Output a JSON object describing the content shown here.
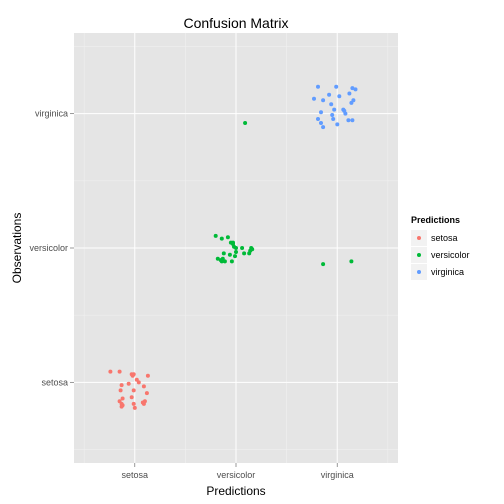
{
  "chart_data": {
    "type": "scatter",
    "title": "Confusion Matrix",
    "xlabel": "Predictions",
    "ylabel": "Observations",
    "categories": [
      "setosa",
      "versicolor",
      "virginica"
    ],
    "xlim": [
      0.4,
      3.6
    ],
    "ylim": [
      0.4,
      3.6
    ],
    "grid": true,
    "legend": {
      "title": "Predictions",
      "position": "right",
      "entries": [
        "setosa",
        "versicolor",
        "virginica"
      ]
    },
    "colors": {
      "setosa": "#F8766D",
      "versicolor": "#00BA38",
      "virginica": "#619CFF",
      "panel": "#E5E5E5",
      "grid": "#FFFFFF"
    },
    "series": [
      {
        "name": "setosa",
        "points": [
          [
            0.76,
            1.08
          ],
          [
            0.85,
            1.08
          ],
          [
            0.97,
            1.06
          ],
          [
            0.98,
            1.05
          ],
          [
            0.99,
            1.06
          ],
          [
            1.02,
            1.02
          ],
          [
            1.13,
            1.05
          ],
          [
            0.87,
            0.98
          ],
          [
            0.94,
            0.99
          ],
          [
            1.04,
            1.0
          ],
          [
            1.09,
            0.97
          ],
          [
            0.86,
            0.94
          ],
          [
            1.12,
            0.92
          ],
          [
            0.88,
            0.88
          ],
          [
            0.97,
            0.89
          ],
          [
            0.99,
            0.94
          ],
          [
            0.85,
            0.86
          ],
          [
            1.08,
            0.85
          ],
          [
            0.87,
            0.84
          ],
          [
            1.09,
            0.84
          ],
          [
            0.88,
            0.83
          ],
          [
            0.99,
            0.84
          ],
          [
            0.87,
            0.82
          ],
          [
            1.0,
            0.81
          ],
          [
            1.1,
            0.86
          ]
        ]
      },
      {
        "name": "versicolor",
        "points": [
          [
            1.8,
            2.09
          ],
          [
            1.86,
            2.07
          ],
          [
            1.92,
            2.08
          ],
          [
            1.95,
            2.04
          ],
          [
            1.97,
            2.04
          ],
          [
            1.97,
            2.03
          ],
          [
            1.98,
            2.01
          ],
          [
            2.0,
            2.0
          ],
          [
            2.06,
            2.0
          ],
          [
            2.15,
            2.0
          ],
          [
            2.16,
            1.99
          ],
          [
            2.14,
            1.98
          ],
          [
            2.0,
            1.97
          ],
          [
            2.08,
            1.96
          ],
          [
            2.13,
            1.96
          ],
          [
            1.88,
            1.96
          ],
          [
            1.94,
            1.95
          ],
          [
            1.99,
            1.94
          ],
          [
            1.82,
            1.92
          ],
          [
            1.85,
            1.91
          ],
          [
            1.89,
            1.9
          ],
          [
            1.96,
            1.9
          ],
          [
            1.86,
            1.9
          ],
          [
            1.87,
            1.92
          ],
          [
            2.86,
            1.88
          ],
          [
            3.14,
            1.9
          ],
          [
            2.09,
            2.93
          ]
        ]
      },
      {
        "name": "virginica",
        "points": [
          [
            2.81,
            3.2
          ],
          [
            2.99,
            3.2
          ],
          [
            3.15,
            3.19
          ],
          [
            3.18,
            3.18
          ],
          [
            3.12,
            3.15
          ],
          [
            2.92,
            3.14
          ],
          [
            3.02,
            3.13
          ],
          [
            2.77,
            3.11
          ],
          [
            3.16,
            3.1
          ],
          [
            2.86,
            3.1
          ],
          [
            2.94,
            3.07
          ],
          [
            3.14,
            3.08
          ],
          [
            3.07,
            3.02
          ],
          [
            2.97,
            3.03
          ],
          [
            2.84,
            3.01
          ],
          [
            3.08,
            3.0
          ],
          [
            2.95,
            2.99
          ],
          [
            3.06,
            3.03
          ],
          [
            3.15,
            2.95
          ],
          [
            2.81,
            2.96
          ],
          [
            3.11,
            2.95
          ],
          [
            2.84,
            2.93
          ],
          [
            2.86,
            2.9
          ],
          [
            3.0,
            2.92
          ],
          [
            2.96,
            2.96
          ]
        ]
      }
    ]
  }
}
